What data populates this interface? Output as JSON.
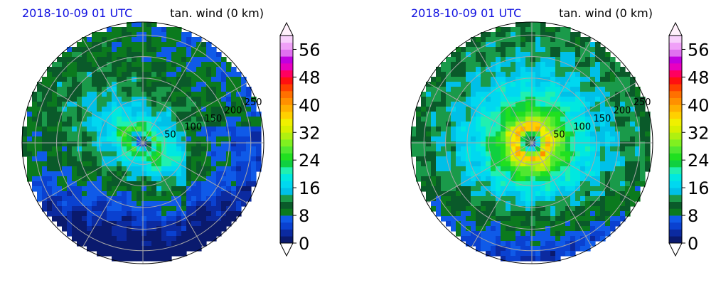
{
  "chart_data": [
    {
      "type": "heatmap",
      "title_left": "2018-10-09 01 UTC",
      "title_right": "tan. wind (0 km)",
      "colorbar": {
        "min": 0,
        "max": 60,
        "step": 2,
        "ticks": [
          0,
          8,
          16,
          24,
          32,
          40,
          48,
          56
        ],
        "extend": "both"
      },
      "radial_rings": [
        50,
        100,
        150,
        200,
        250
      ],
      "grid": true,
      "field": "asymmetric",
      "core_max": 26
    },
    {
      "type": "heatmap",
      "title_left": "2018-10-09 01 UTC",
      "title_right": "tan. wind (0 km)",
      "colorbar": {
        "min": 0,
        "max": 60,
        "step": 2,
        "ticks": [
          0,
          8,
          16,
          24,
          32,
          40,
          48,
          56
        ],
        "extend": "both"
      },
      "radial_rings": [
        50,
        100,
        150,
        200,
        250
      ],
      "grid": true,
      "field": "symmetric",
      "core_max": 40
    }
  ],
  "colormap": [
    "#0a1a6e",
    "#0b2aa0",
    "#0a41d0",
    "#0f5ae8",
    "#0b7a1e",
    "#0a5a2a",
    "#1a9a4a",
    "#00c0e8",
    "#00d8f0",
    "#00e8e0",
    "#20f0b0",
    "#10d040",
    "#20e020",
    "#50e830",
    "#80f020",
    "#b0f010",
    "#d8f000",
    "#f0f000",
    "#ffd000",
    "#ffb000",
    "#ff9000",
    "#ff7000",
    "#ff4000",
    "#ff1010",
    "#ff0060",
    "#e800c0",
    "#c000e0",
    "#e070f0",
    "#f0a0f8",
    "#f8d0fc"
  ]
}
